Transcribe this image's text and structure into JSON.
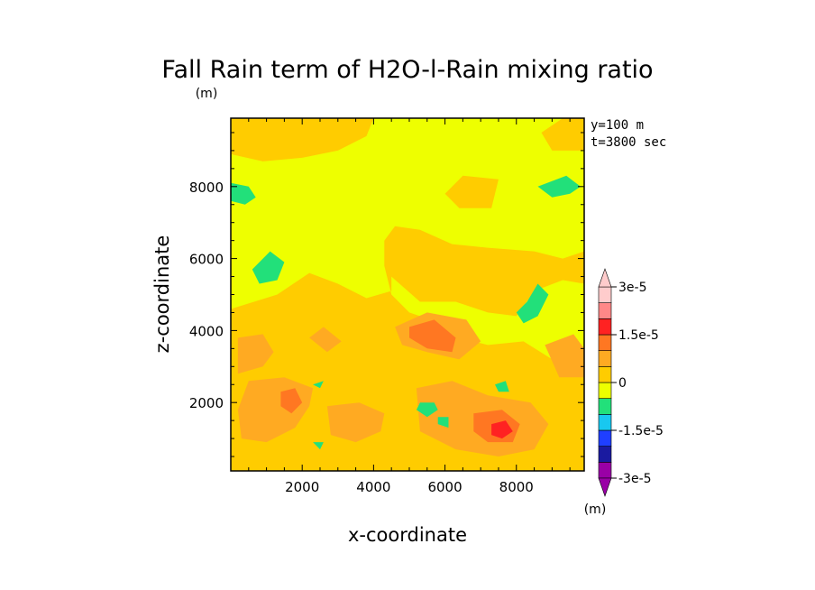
{
  "chart_data": {
    "type": "heatmap",
    "title": "Fall Rain term of H2O-l-Rain mixing ratio",
    "unit_top": "(m)",
    "unit_colorbar": "(m)",
    "xlabel": "x-coordinate",
    "ylabel": "z-coordinate",
    "info": [
      "y=100 m",
      "t=3800 sec"
    ],
    "xlim": [
      0,
      9900
    ],
    "ylim": [
      100,
      9900
    ],
    "xticks": [
      2000,
      4000,
      6000,
      8000
    ],
    "yticks": [
      2000,
      4000,
      6000,
      8000
    ],
    "levels": [
      -3e-05,
      -2.5e-05,
      -2e-05,
      -1.5e-05,
      -1e-05,
      -5e-06,
      0,
      5e-06,
      1e-05,
      1.5e-05,
      2e-05,
      2.5e-05,
      3e-05
    ],
    "level_labels": [
      "-3e-5",
      "-1.5e-5",
      "0",
      "1.5e-5",
      "3e-5"
    ],
    "colors": [
      "#9a00a6",
      "#1a1aa0",
      "#1f3fff",
      "#18c8f0",
      "#22e07a",
      "#eeff00",
      "#ffcc00",
      "#ffaa22",
      "#ff7722",
      "#ff2222",
      "#ff8888",
      "#ffcccc"
    ],
    "background_color": "#eeff00",
    "regions": [
      {
        "color": "#ffcc00",
        "points": [
          [
            0,
            100
          ],
          [
            9900,
            100
          ],
          [
            9900,
            3400
          ],
          [
            9000,
            3200
          ],
          [
            8200,
            3700
          ],
          [
            7200,
            3600
          ],
          [
            6400,
            3800
          ],
          [
            5600,
            4300
          ],
          [
            5000,
            4500
          ],
          [
            4500,
            5000
          ],
          [
            4300,
            5800
          ],
          [
            4300,
            6500
          ],
          [
            4600,
            6900
          ],
          [
            5300,
            6800
          ],
          [
            6200,
            6400
          ],
          [
            7200,
            6300
          ],
          [
            8500,
            6200
          ],
          [
            9300,
            6000
          ],
          [
            9900,
            6200
          ],
          [
            9900,
            5300
          ],
          [
            9300,
            5400
          ],
          [
            8500,
            5100
          ],
          [
            8000,
            4400
          ],
          [
            7200,
            4500
          ],
          [
            6300,
            4800
          ],
          [
            5300,
            4800
          ],
          [
            4500,
            5500
          ],
          [
            4500,
            5100
          ],
          [
            3800,
            4900
          ],
          [
            3000,
            5300
          ],
          [
            2200,
            5600
          ],
          [
            1300,
            5000
          ],
          [
            0,
            4600
          ]
        ]
      },
      {
        "color": "#ffcc00",
        "points": [
          [
            0,
            9900
          ],
          [
            4000,
            9900
          ],
          [
            3800,
            9400
          ],
          [
            3000,
            9000
          ],
          [
            2000,
            8800
          ],
          [
            900,
            8700
          ],
          [
            0,
            8900
          ]
        ]
      },
      {
        "color": "#ffcc00",
        "points": [
          [
            9900,
            9900
          ],
          [
            9300,
            9900
          ],
          [
            8700,
            9500
          ],
          [
            9000,
            9000
          ],
          [
            9900,
            9000
          ]
        ]
      },
      {
        "color": "#ffcc00",
        "points": [
          [
            6500,
            8300
          ],
          [
            7500,
            8200
          ],
          [
            7300,
            7400
          ],
          [
            6400,
            7400
          ],
          [
            6000,
            7800
          ]
        ]
      },
      {
        "color": "#ffaa22",
        "points": [
          [
            200,
            3800
          ],
          [
            900,
            3900
          ],
          [
            1200,
            3400
          ],
          [
            900,
            3000
          ],
          [
            200,
            2800
          ]
        ]
      },
      {
        "color": "#ffaa22",
        "points": [
          [
            2200,
            3800
          ],
          [
            2600,
            4100
          ],
          [
            3100,
            3700
          ],
          [
            2700,
            3400
          ]
        ]
      },
      {
        "color": "#ffaa22",
        "points": [
          [
            500,
            2600
          ],
          [
            1500,
            2700
          ],
          [
            2300,
            2400
          ],
          [
            2200,
            1900
          ],
          [
            1800,
            1300
          ],
          [
            1000,
            900
          ],
          [
            300,
            1000
          ],
          [
            200,
            1800
          ]
        ]
      },
      {
        "color": "#ffaa22",
        "points": [
          [
            2700,
            1900
          ],
          [
            3600,
            2000
          ],
          [
            4300,
            1700
          ],
          [
            4200,
            1200
          ],
          [
            3500,
            900
          ],
          [
            2800,
            1100
          ]
        ]
      },
      {
        "color": "#ffaa22",
        "points": [
          [
            4600,
            4100
          ],
          [
            5500,
            4500
          ],
          [
            6600,
            4300
          ],
          [
            7000,
            3700
          ],
          [
            6400,
            3200
          ],
          [
            5500,
            3400
          ],
          [
            4800,
            3600
          ]
        ]
      },
      {
        "color": "#ffaa22",
        "points": [
          [
            5200,
            2400
          ],
          [
            6200,
            2600
          ],
          [
            7200,
            2200
          ],
          [
            8400,
            2000
          ],
          [
            8900,
            1400
          ],
          [
            8500,
            700
          ],
          [
            7500,
            500
          ],
          [
            6300,
            700
          ],
          [
            5300,
            1200
          ]
        ]
      },
      {
        "color": "#ffaa22",
        "points": [
          [
            8800,
            3600
          ],
          [
            9600,
            3900
          ],
          [
            9900,
            3500
          ],
          [
            9900,
            2700
          ],
          [
            9200,
            2700
          ]
        ]
      },
      {
        "color": "#ff7722",
        "points": [
          [
            5000,
            4100
          ],
          [
            5700,
            4300
          ],
          [
            6300,
            3800
          ],
          [
            6200,
            3400
          ],
          [
            5500,
            3500
          ],
          [
            5000,
            3800
          ]
        ]
      },
      {
        "color": "#ff7722",
        "points": [
          [
            1400,
            2300
          ],
          [
            1800,
            2400
          ],
          [
            2000,
            2000
          ],
          [
            1700,
            1700
          ],
          [
            1400,
            1900
          ]
        ]
      },
      {
        "color": "#ff7722",
        "points": [
          [
            6800,
            1700
          ],
          [
            7600,
            1800
          ],
          [
            8100,
            1400
          ],
          [
            7900,
            900
          ],
          [
            7200,
            900
          ],
          [
            6800,
            1200
          ]
        ]
      },
      {
        "color": "#ff2222",
        "points": [
          [
            7300,
            1400
          ],
          [
            7700,
            1500
          ],
          [
            7900,
            1200
          ],
          [
            7600,
            1000
          ],
          [
            7300,
            1100
          ]
        ]
      },
      {
        "color": "#22e07a",
        "points": [
          [
            0,
            8100
          ],
          [
            500,
            8000
          ],
          [
            700,
            7700
          ],
          [
            400,
            7500
          ],
          [
            0,
            7600
          ]
        ]
      },
      {
        "color": "#22e07a",
        "points": [
          [
            600,
            5700
          ],
          [
            1100,
            6200
          ],
          [
            1500,
            5900
          ],
          [
            1300,
            5400
          ],
          [
            800,
            5300
          ]
        ]
      },
      {
        "color": "#22e07a",
        "points": [
          [
            8600,
            8000
          ],
          [
            9400,
            8300
          ],
          [
            9800,
            8000
          ],
          [
            9500,
            7800
          ],
          [
            9000,
            7700
          ]
        ]
      },
      {
        "color": "#22e07a",
        "points": [
          [
            8300,
            4800
          ],
          [
            8600,
            5300
          ],
          [
            8900,
            5000
          ],
          [
            8600,
            4400
          ],
          [
            8200,
            4200
          ],
          [
            8000,
            4500
          ]
        ]
      },
      {
        "color": "#22e07a",
        "points": [
          [
            5300,
            2000
          ],
          [
            5700,
            2000
          ],
          [
            5800,
            1800
          ],
          [
            5500,
            1600
          ],
          [
            5200,
            1800
          ]
        ]
      },
      {
        "color": "#22e07a",
        "points": [
          [
            5800,
            1600
          ],
          [
            6100,
            1600
          ],
          [
            6100,
            1300
          ],
          [
            5800,
            1400
          ]
        ]
      },
      {
        "color": "#22e07a",
        "points": [
          [
            7400,
            2500
          ],
          [
            7700,
            2600
          ],
          [
            7800,
            2300
          ],
          [
            7500,
            2300
          ]
        ]
      },
      {
        "color": "#22e07a",
        "points": [
          [
            2300,
            900
          ],
          [
            2600,
            900
          ],
          [
            2500,
            700
          ]
        ]
      },
      {
        "color": "#22e07a",
        "points": [
          [
            2300,
            2500
          ],
          [
            2600,
            2600
          ],
          [
            2500,
            2400
          ]
        ]
      }
    ]
  }
}
